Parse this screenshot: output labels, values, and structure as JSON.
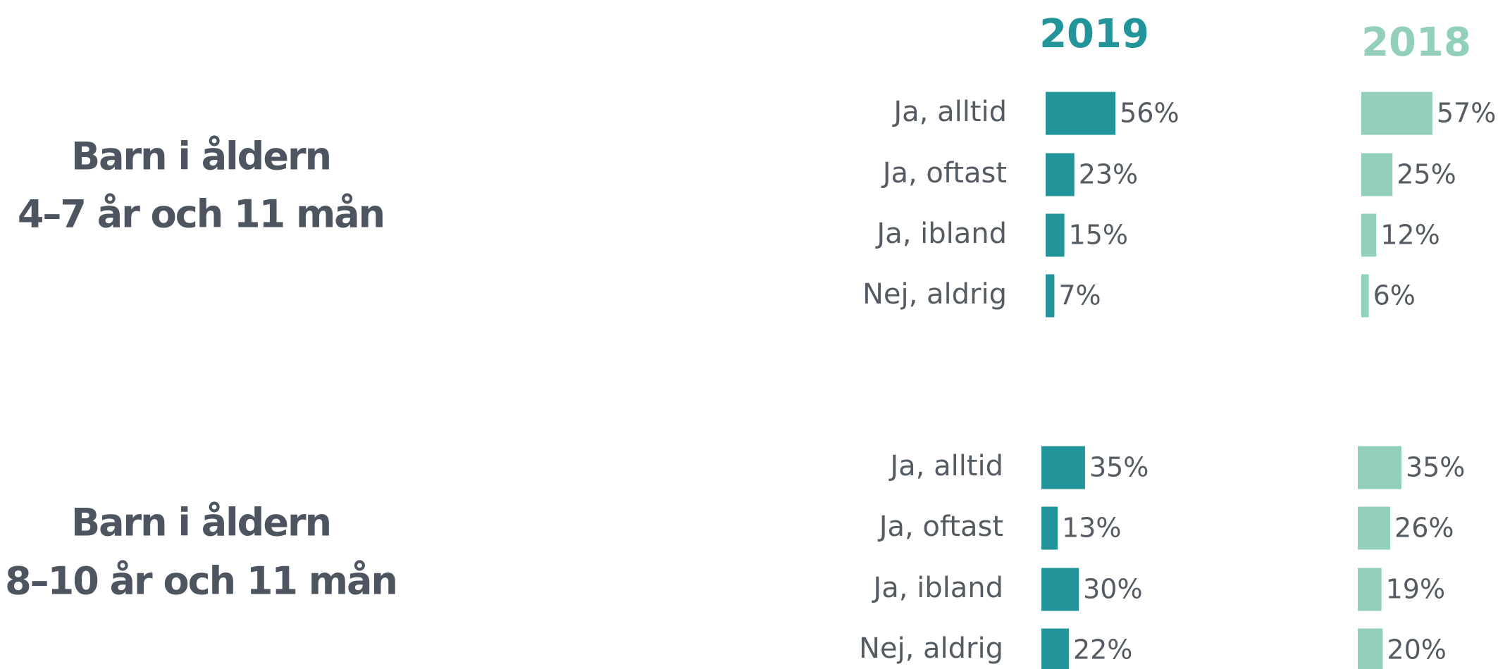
{
  "chart_data": [
    {
      "type": "bar",
      "orientation": "horizontal",
      "title": [
        "Barn i åldern",
        "4–7 år och 11 mån"
      ],
      "categories": [
        "Ja, alltid",
        "Ja, oftast",
        "Ja, ibland",
        "Nej, aldrig"
      ],
      "xlim": [
        0,
        100
      ],
      "series": [
        {
          "name": "2019",
          "color": "#23949a",
          "values": [
            56,
            23,
            15,
            7
          ],
          "value_labels": [
            "56%",
            "23%",
            "15%",
            "7%"
          ]
        },
        {
          "name": "2018",
          "color": "#92d0bb",
          "values": [
            57,
            25,
            12,
            6
          ],
          "value_labels": [
            "57%",
            "25%",
            "12%",
            "6%"
          ]
        }
      ]
    },
    {
      "type": "bar",
      "orientation": "horizontal",
      "title": [
        "Barn i åldern",
        "8–10 år och 11 mån"
      ],
      "categories": [
        "Ja, alltid",
        "Ja, oftast",
        "Ja, ibland",
        "Nej, aldrig"
      ],
      "xlim": [
        0,
        100
      ],
      "series": [
        {
          "values": [
            35,
            13,
            30,
            22
          ],
          "value_labels": [
            "35%",
            "13%",
            "30%",
            "22%"
          ]
        },
        {
          "values": [
            35,
            26,
            19,
            20
          ],
          "value_labels": [
            "35%",
            "26%",
            "19%",
            "20%"
          ]
        }
      ]
    }
  ]
}
